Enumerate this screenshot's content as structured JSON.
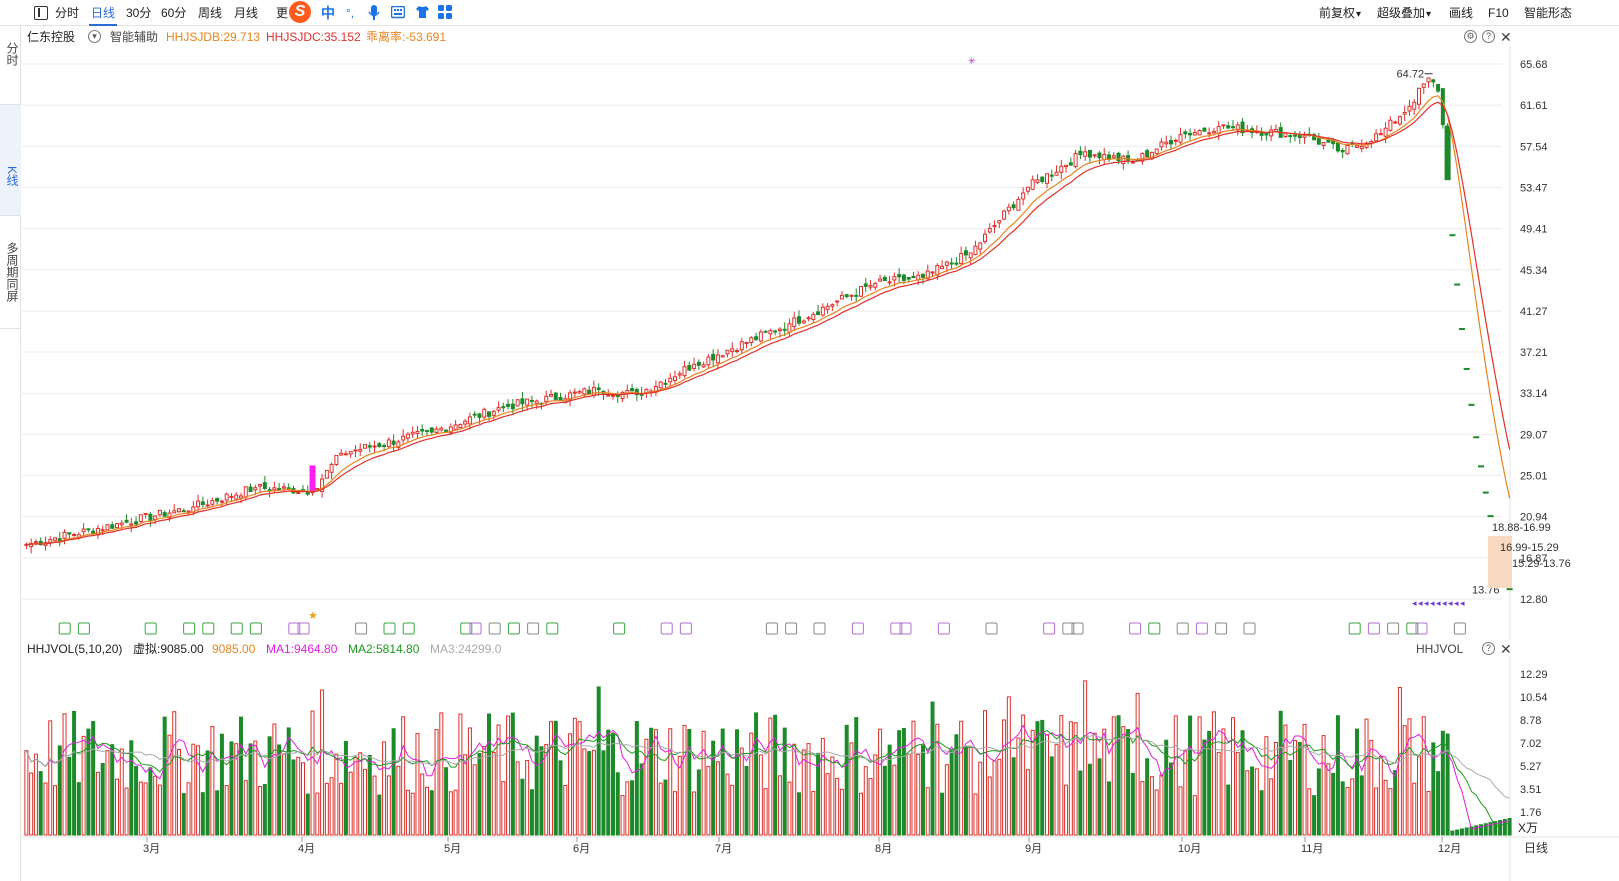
{
  "toolbar": {
    "items": [
      {
        "label": "分时"
      },
      {
        "label": "日线"
      },
      {
        "label": "30分"
      },
      {
        "label": "60分"
      },
      {
        "label": "周线"
      },
      {
        "label": "月线"
      },
      {
        "label": "更"
      }
    ],
    "active": "日线",
    "ime_items": [
      "中",
      "°,"
    ],
    "right": [
      "前复权",
      "超级叠加",
      "画线",
      "F10",
      "智能形态"
    ]
  },
  "left_tabs": [
    "分时",
    "K线",
    "多周期同屏"
  ],
  "main": {
    "stock_name": "仁东控股",
    "assist_label": "智能辅助",
    "indicators": [
      {
        "text": "HHJSJDB:29.713",
        "color": "#e8841d"
      },
      {
        "text": "HHJSJDC:35.152",
        "color": "#e0302b"
      },
      {
        "text": "乖离率:-53.691",
        "color": "#e8841d"
      }
    ],
    "price_axis": [
      "65.68",
      "61.61",
      "57.54",
      "53.47",
      "49.41",
      "45.34",
      "41.27",
      "37.21",
      "33.14",
      "29.07",
      "25.01",
      "20.94",
      "16.87",
      "12.80"
    ],
    "high_label": "64.72",
    "low_label": "13.76",
    "range_labels": [
      "18.88-16.99",
      "16.99-15.29",
      "15.29-13.76"
    ],
    "ma_colors": {
      "ma1": "#e8841d",
      "ma2": "#e0302b"
    }
  },
  "volume": {
    "title": "HHJVOL(5,10,20)",
    "virtual": "虚拟:9085.00",
    "vol": "9085.00",
    "ma1": "MA1:9464.80",
    "ma2": "MA2:5814.80",
    "ma3": "MA3:24299.0",
    "right_title": "HHJVOL",
    "axis": [
      "12.29",
      "10.54",
      "8.78",
      "7.02",
      "5.27",
      "3.51",
      "1.76"
    ],
    "unit": "X万"
  },
  "date_axis": [
    "3月",
    "4月",
    "5月",
    "6月",
    "7月",
    "8月",
    "9月",
    "10月",
    "11月",
    "12月"
  ],
  "period_label": "日线",
  "event_markers": [
    "押",
    "押",
    "押",
    "东",
    "押",
    "押"
  ],
  "chart_data": {
    "type": "candlestick",
    "title": "仁东控股",
    "price_range": [
      12.8,
      65.68
    ],
    "price_ticks": [
      65.68,
      61.61,
      57.54,
      53.47,
      49.41,
      45.34,
      41.27,
      37.21,
      33.14,
      29.07,
      25.01,
      20.94,
      16.87,
      12.8
    ],
    "high": 64.72,
    "low": 13.76,
    "months": [
      "3月",
      "4月",
      "5月",
      "6月",
      "7月",
      "8月",
      "9月",
      "10月",
      "11月",
      "12月"
    ],
    "anchors": [
      [
        0,
        18.2
      ],
      [
        20,
        20.3
      ],
      [
        35,
        21.9
      ],
      [
        48,
        23.8
      ],
      [
        60,
        23.5
      ],
      [
        66,
        27.2
      ],
      [
        85,
        29.3
      ],
      [
        100,
        31.8
      ],
      [
        120,
        33.5
      ],
      [
        128,
        33.0
      ],
      [
        140,
        36.0
      ],
      [
        160,
        40.0
      ],
      [
        178,
        44.0
      ],
      [
        188,
        44.6
      ],
      [
        198,
        47.0
      ],
      [
        210,
        53.5
      ],
      [
        222,
        57.0
      ],
      [
        232,
        56.0
      ],
      [
        242,
        58.7
      ],
      [
        250,
        59.5
      ],
      [
        268,
        58.6
      ],
      [
        276,
        57.0
      ],
      [
        284,
        58.8
      ],
      [
        290,
        61.5
      ],
      [
        294,
        64.3
      ],
      [
        296,
        63.0
      ],
      [
        297,
        59.7
      ],
      [
        298,
        55.0
      ]
    ],
    "limit_down_closes": [
      48.76,
      43.88,
      39.49,
      35.54,
      31.99,
      28.79,
      25.91,
      23.32,
      20.99,
      18.89,
      17.0,
      15.3,
      13.77
    ],
    "volume_range": [
      0,
      12.29
    ],
    "volume_ticks": [
      12.29,
      10.54,
      8.78,
      7.02,
      5.27,
      3.51,
      1.76
    ],
    "volume_unit": "万"
  }
}
